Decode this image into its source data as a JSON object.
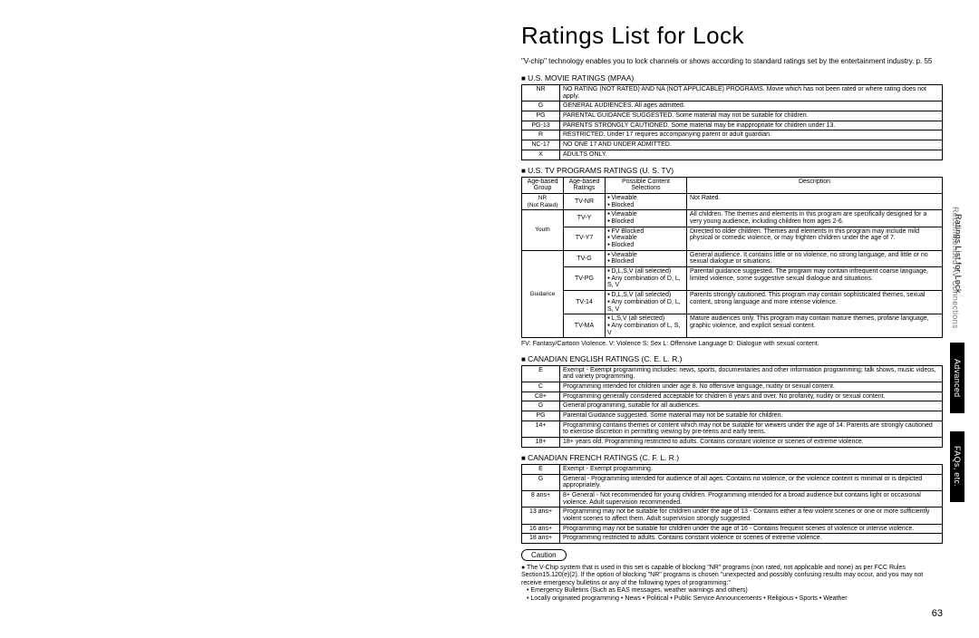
{
  "title": "Ratings List for Lock",
  "intro": "\"V-chip\" technology enables you to lock channels or shows according to standard ratings set by the entertainment industry. p. 55",
  "page_number": "63",
  "side_tabs": {
    "t1a": "Ratings List for Lock",
    "t1b": "Recommended AV Connections",
    "t2": "Advanced",
    "t3": "FAQs, etc."
  },
  "mpaa": {
    "heading": "U.S. MOVIE RATINGS (MPAA)",
    "rows": [
      [
        "NR",
        "NO RATING (NOT RATED) AND NA (NOT APPLICABLE) PROGRAMS. Movie which has not been rated or where rating does not apply."
      ],
      [
        "G",
        "GENERAL AUDIENCES. All ages admitted."
      ],
      [
        "PG",
        "PARENTAL GUIDANCE SUGGESTED. Some material may not be suitable for children."
      ],
      [
        "PG-13",
        "PARENTS STRONGLY CAUTIONED. Some material may be inappropriate for children under 13."
      ],
      [
        "R",
        "RESTRICTED. Under 17 requires accompanying parent or adult guardian."
      ],
      [
        "NC-17",
        "NO ONE 17 AND UNDER ADMITTED."
      ],
      [
        "X",
        "ADULTS ONLY."
      ]
    ]
  },
  "ustv": {
    "heading": "U.S. TV PROGRAMS RATINGS (U. S. TV)",
    "headers": [
      "Age-based Group",
      "Age-based Ratings",
      "Possible Content Selections",
      "Description"
    ],
    "note": "FV: Fantasy/Cartoon Violence. V: Violence S: Sex L: Offensive Language D: Dialogue with sexual content.",
    "groups": [
      {
        "group": "NR\n(Not Rated)",
        "rows": [
          {
            "rating": "TV-NR",
            "sel": [
              "Viewable",
              "Blocked"
            ],
            "desc": "Not Rated."
          }
        ]
      },
      {
        "group": "Youth",
        "rows": [
          {
            "rating": "TV-Y",
            "sel": [
              "Viewable",
              "Blocked"
            ],
            "desc": "All children. The themes and elements in this program are specifically designed for a very young audience, including children from ages 2-6."
          },
          {
            "rating": "TV-Y7",
            "sel": [
              "FV Blocked",
              "Viewable",
              "Blocked"
            ],
            "desc": "Directed to older children. Themes and elements in this program may include mild physical or comedic violence, or may frighten children under the age of 7."
          }
        ]
      },
      {
        "group": "Guidance",
        "rows": [
          {
            "rating": "TV-G",
            "sel": [
              "Viewable",
              "Blocked"
            ],
            "desc": "General audience. It contains little or no violence, no strong language, and little or no sexual dialogue or situations."
          },
          {
            "rating": "TV-PG",
            "sel": [
              "D,L,S,V (all selected)",
              "Any combination of D, L, S, V"
            ],
            "desc": "Parental guidance suggested. The program may contain infrequent coarse language, limited violence, some suggestive sexual dialogue and situations."
          },
          {
            "rating": "TV-14",
            "sel": [
              "D,L,S,V (all selected)",
              "Any combination of D, L, S, V"
            ],
            "desc": "Parents strongly cautioned. This program may contain sophisticated themes, sexual content, strong language and more intense violence."
          },
          {
            "rating": "TV-MA",
            "sel": [
              "L,S,V (all selected)",
              "Any combination of L, S, V"
            ],
            "desc": "Mature audiences only. This program may contain mature themes, profane language, graphic violence, and explicit sexual content."
          }
        ]
      }
    ]
  },
  "celr": {
    "heading": "CANADIAN ENGLISH RATINGS (C. E. L. R.)",
    "rows": [
      [
        "E",
        "Exempt - Exempt programming includes: news, sports, documentaries and other information programming; talk shows, music videos, and variety programming."
      ],
      [
        "C",
        "Programming intended for children under age 8. No offensive language, nudity or sexual content."
      ],
      [
        "C8+",
        "Programming generally considered acceptable for children 8 years and over. No profanity, nudity or sexual content."
      ],
      [
        "G",
        "General programming, suitable for all audiences."
      ],
      [
        "PG",
        "Parental Guidance suggested. Some material may not be suitable for children."
      ],
      [
        "14+",
        "Programming contains themes or content which may not be suitable for viewers under the age of 14. Parents are strongly cautioned to exercise discretion in permitting viewing by pre-teens and early teens."
      ],
      [
        "18+",
        "18+ years old. Programming restricted to adults. Contains constant violence or scenes of extreme violence."
      ]
    ]
  },
  "cflr": {
    "heading": "CANADIAN FRENCH RATINGS (C. F. L. R.)",
    "rows": [
      [
        "E",
        "Exempt - Exempt programming."
      ],
      [
        "G",
        "General - Programming intended for audience of all ages. Contains no violence, or the violence content is minimal or is depicted appropriately."
      ],
      [
        "8 ans+",
        "8+ General - Not recommended for young children. Programming intended for a broad audience but contains light or occasional violence. Adult supervision recommended."
      ],
      [
        "13 ans+",
        "Programming may not be suitable for children under the age of 13 - Contains either a few violent scenes or one or more sufficiently violent scenes to affect them. Adult supervision strongly suggested."
      ],
      [
        "16 ans+",
        "Programming may not be suitable for children under the age of 16 - Contains frequent scenes of violence or intense violence."
      ],
      [
        "18 ans+",
        "Programming restricted to adults. Contains constant violence or scenes of extreme violence."
      ]
    ]
  },
  "caution": {
    "label": "Caution",
    "body": "The V-Chip system that is used in this set is capable of blocking \"NR\" programs (non rated, not applicable and none) as per FCC Rules Section15.120(e)(2). If the option of blocking \"NR\" programs is chosen \"unexpected and possibly confusing results may occur, and you may not receive emergency bulletins or any of the following types of programming:\"",
    "bullets": [
      "Emergency Bulletins (Such as EAS messages, weather warnings and others)",
      "Locally originated programming • News • Political • Public Service Announcements • Religious • Sports • Weather"
    ]
  }
}
